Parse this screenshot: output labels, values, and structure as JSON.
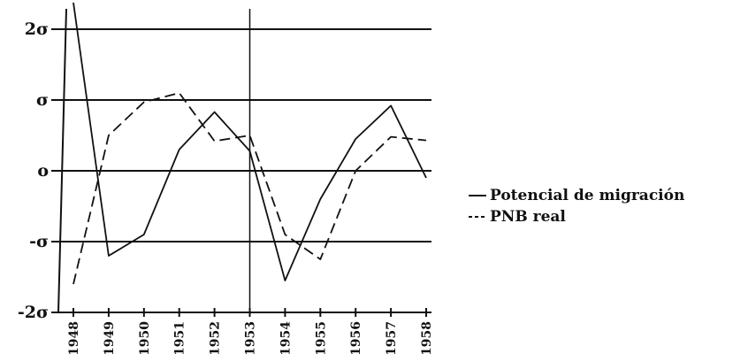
{
  "chart_data": {
    "type": "line",
    "x": [
      1948,
      1949,
      1950,
      1951,
      1952,
      1953,
      1954,
      1955,
      1956,
      1957,
      1958
    ],
    "x_tick_labels": [
      "1948",
      "1949",
      "1950",
      "1951",
      "1952",
      "1953",
      "1954",
      "1955",
      "1956",
      "1957",
      "1958"
    ],
    "ylim": [
      -2,
      2
    ],
    "y_ticks": [
      2,
      1,
      0,
      -1,
      -2
    ],
    "y_tick_labels": [
      "2σ",
      "σ",
      "o",
      "-σ",
      "-2σ"
    ],
    "grid_y": true,
    "reference_line_x": 1953,
    "legend_position": "right",
    "series": [
      {
        "name": "Potencial de migración",
        "style": "solid",
        "color": "#111111",
        "points": [
          [
            1948,
            2.4
          ],
          [
            1949,
            -1.2
          ],
          [
            1950,
            -0.9
          ],
          [
            1951,
            0.3
          ],
          [
            1952,
            0.83
          ],
          [
            1953,
            0.28
          ],
          [
            1954,
            -1.55
          ],
          [
            1955,
            -0.4
          ],
          [
            1956,
            0.45
          ],
          [
            1957,
            0.92
          ],
          [
            1958,
            -0.1
          ]
        ]
      },
      {
        "name": "PNB real",
        "style": "dashed",
        "color": "#111111",
        "points": [
          [
            1948,
            -1.6
          ],
          [
            1949,
            0.5
          ],
          [
            1950,
            0.97
          ],
          [
            1951,
            1.1
          ],
          [
            1952,
            0.42
          ],
          [
            1953,
            0.5
          ],
          [
            1954,
            -0.9
          ],
          [
            1955,
            -1.25
          ],
          [
            1956,
            0.0
          ],
          [
            1957,
            0.48
          ],
          [
            1958,
            0.43
          ]
        ]
      }
    ]
  }
}
